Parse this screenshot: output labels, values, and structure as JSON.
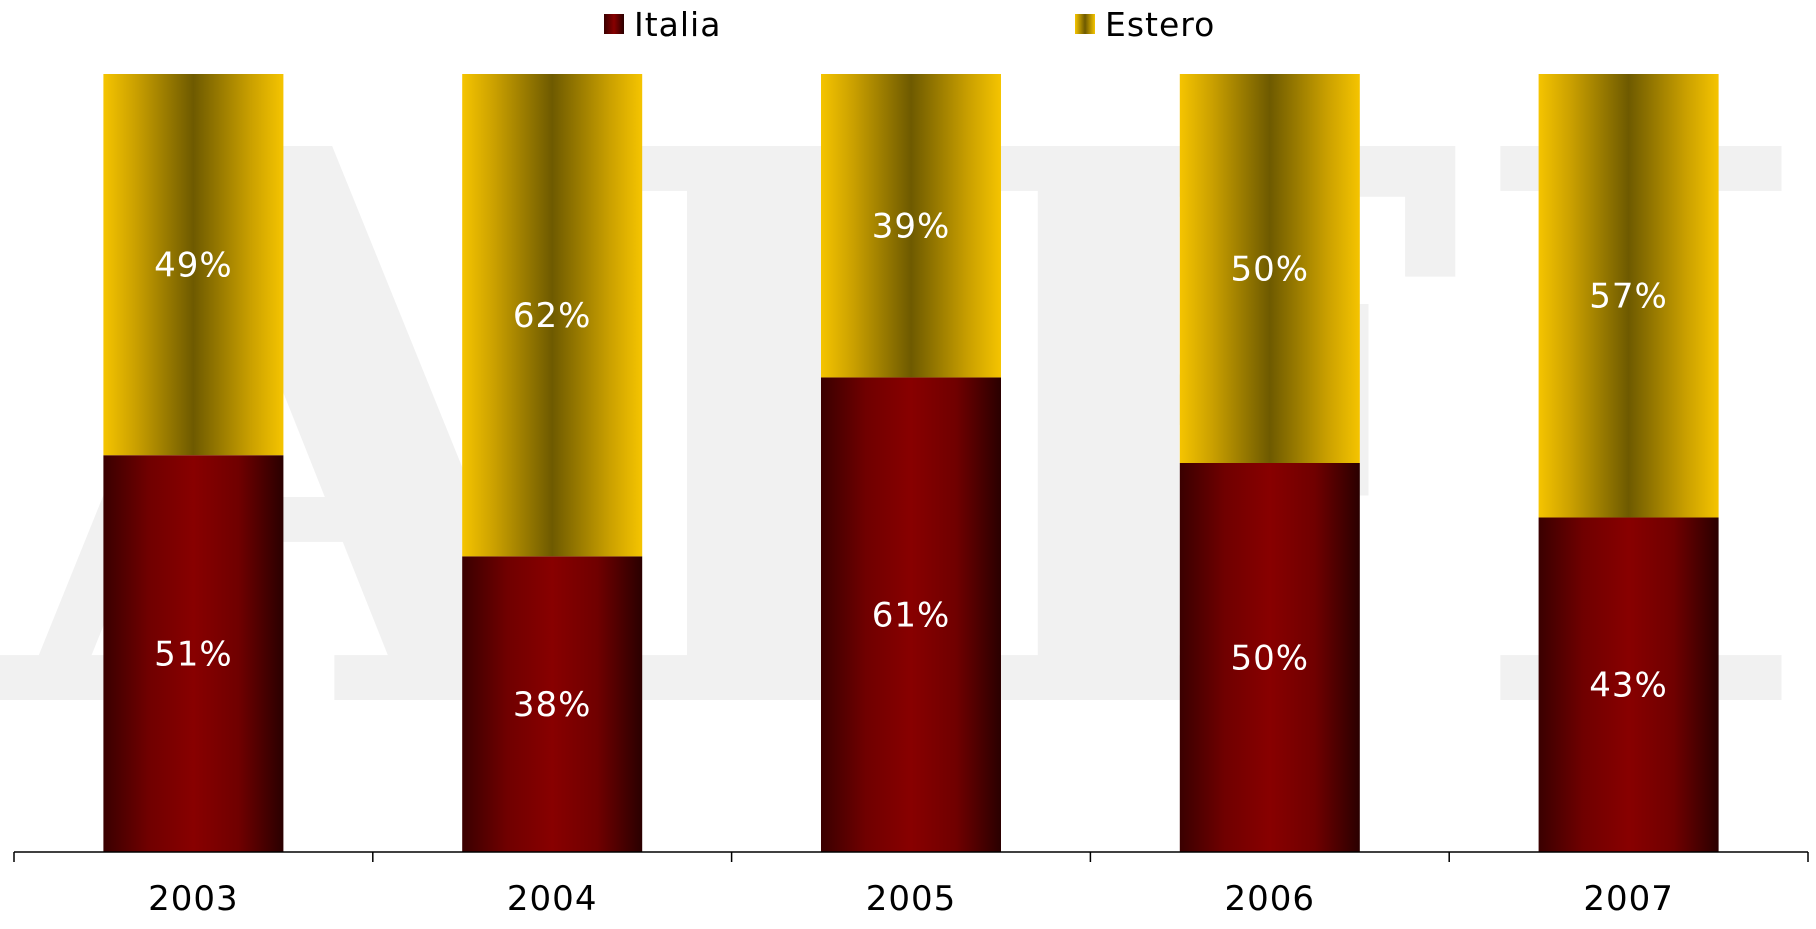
{
  "chart_data": {
    "type": "bar",
    "stacked": true,
    "percent": true,
    "categories": [
      "2003",
      "2004",
      "2005",
      "2006",
      "2007"
    ],
    "series": [
      {
        "name": "Italia",
        "values": [
          51,
          38,
          61,
          50,
          43
        ],
        "labels": [
          "51%",
          "38%",
          "61%",
          "50%",
          "43%"
        ],
        "color": "#800000"
      },
      {
        "name": "Estero",
        "values": [
          49,
          62,
          39,
          50,
          57
        ],
        "labels": [
          "49%",
          "62%",
          "39%",
          "50%",
          "57%"
        ],
        "color": "#f5c400"
      }
    ],
    "ylim": [
      0,
      100
    ],
    "legend_position": "top",
    "grid": false,
    "watermark": "AIFI"
  }
}
